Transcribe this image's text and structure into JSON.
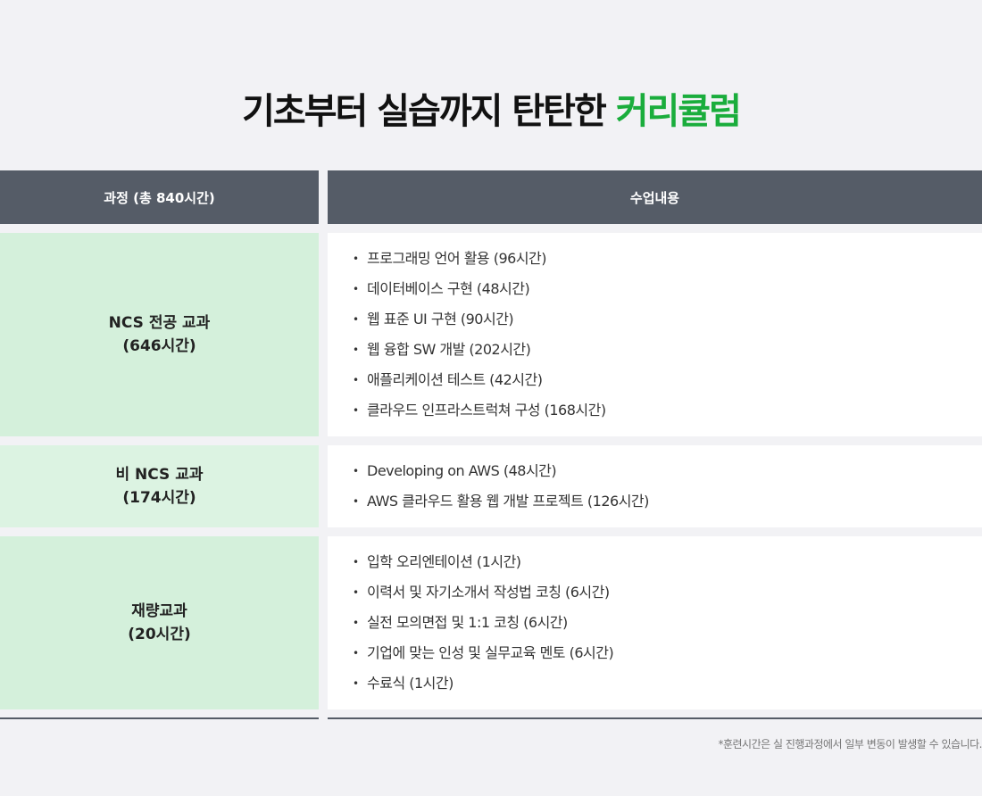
{
  "title": {
    "main": "기초부터 실습까지 탄탄한 ",
    "accent": "커리큘럼"
  },
  "header": {
    "course": "과정 (총 840시간)",
    "content": "수업내용"
  },
  "rows": [
    {
      "name_line1": "NCS 전공 교과",
      "name_line2": "(646시간)",
      "bg": "#d4f0db",
      "items": [
        "프로그래밍 언어 활용 (96시간)",
        "데이터베이스 구현 (48시간)",
        "웹 표준 UI 구현 (90시간)",
        "웹 융합 SW 개발 (202시간)",
        "애플리케이션 테스트 (42시간)",
        "클라우드 인프라스트럭쳐 구성 (168시간)"
      ]
    },
    {
      "name_line1": "비 NCS 교과",
      "name_line2": "(174시간)",
      "bg": "#dcf3e2",
      "items": [
        "Developing on AWS (48시간)",
        "AWS 클라우드 활용 웹 개발 프로젝트 (126시간)"
      ]
    },
    {
      "name_line1": "재량교과",
      "name_line2": "(20시간)",
      "bg": "#d4f0db",
      "items": [
        "입학 오리엔테이션 (1시간)",
        "이력서 및 자기소개서 작성법 코칭 (6시간)",
        "실전 모의면접 및 1:1 코칭 (6시간)",
        "기업에 맞는 인성 및 실무교육 멘토 (6시간)",
        "수료식 (1시간)"
      ]
    }
  ],
  "footnote": "*훈련시간은 실 진행과정에서 일부 변동이 발생할 수 있습니다."
}
